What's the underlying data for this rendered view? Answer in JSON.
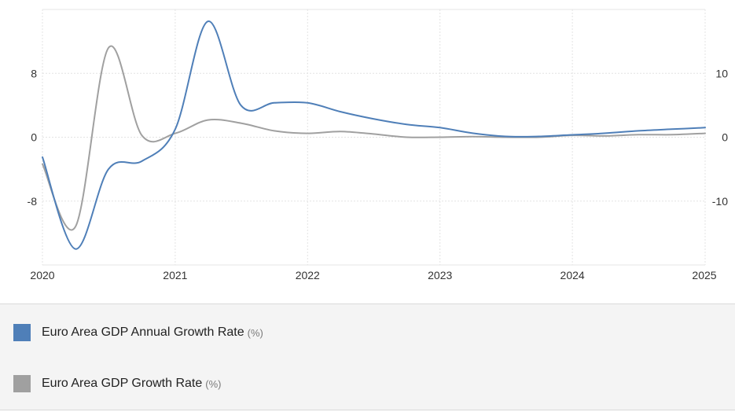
{
  "chart_data": {
    "type": "line",
    "x_ticks": [
      "2020",
      "2021",
      "2022",
      "2023",
      "2024",
      "2025"
    ],
    "y_left": {
      "ticks": [
        "-8",
        "0",
        "8"
      ],
      "range": [
        -16,
        16
      ]
    },
    "y_right": {
      "ticks": [
        "-10",
        "0",
        "10"
      ],
      "range": [
        -20,
        20
      ]
    },
    "grid": true,
    "legend_position": "bottom",
    "series": [
      {
        "name": "Euro Area GDP Annual Growth Rate",
        "unit": "(%)",
        "color": "#4f7fb8",
        "axis": "left",
        "x": [
          "2020-01",
          "2020-04",
          "2020-07",
          "2020-10",
          "2021-01",
          "2021-04",
          "2021-07",
          "2021-10",
          "2022-01",
          "2022-04",
          "2022-07",
          "2022-10",
          "2023-01",
          "2023-04",
          "2023-07",
          "2023-10",
          "2024-01",
          "2024-04",
          "2024-07",
          "2024-10",
          "2025-01"
        ],
        "y": [
          -2.5,
          -14.0,
          -4.0,
          -3.0,
          1.0,
          14.5,
          4.0,
          4.3,
          4.3,
          3.2,
          2.3,
          1.6,
          1.2,
          0.5,
          0.1,
          0.1,
          0.3,
          0.5,
          0.8,
          1.0,
          1.2
        ]
      },
      {
        "name": "Euro Area GDP Growth Rate",
        "unit": "(%)",
        "color": "#a0a0a0",
        "axis": "right",
        "x": [
          "2020-01",
          "2020-04",
          "2020-07",
          "2020-10",
          "2021-01",
          "2021-04",
          "2021-07",
          "2021-10",
          "2022-01",
          "2022-04",
          "2022-07",
          "2022-10",
          "2023-01",
          "2023-04",
          "2023-07",
          "2023-10",
          "2024-01",
          "2024-04",
          "2024-07",
          "2024-10",
          "2025-01"
        ],
        "y": [
          -4.2,
          -14.0,
          14.0,
          0.3,
          0.6,
          2.7,
          2.2,
          1.0,
          0.6,
          0.9,
          0.5,
          0.0,
          0.0,
          0.1,
          0.0,
          0.0,
          0.3,
          0.2,
          0.4,
          0.4,
          0.6
        ]
      }
    ]
  }
}
